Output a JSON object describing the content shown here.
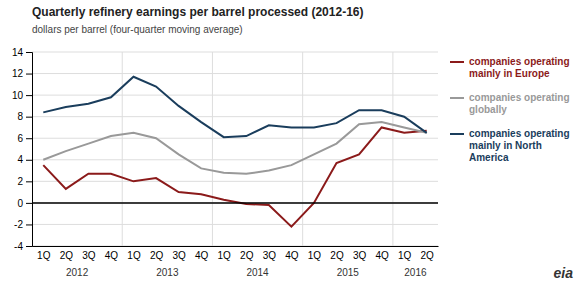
{
  "chart_data": {
    "type": "line",
    "title": "Quarterly refinery earnings per barrel processed (2012-16)",
    "subtitle": "dollars per barrel (four-quarter moving average)",
    "categories": [
      "1Q",
      "2Q",
      "3Q",
      "4Q",
      "1Q",
      "2Q",
      "3Q",
      "4Q",
      "1Q",
      "2Q",
      "3Q",
      "4Q",
      "1Q",
      "2Q",
      "3Q",
      "4Q",
      "1Q",
      "2Q"
    ],
    "annotations": [
      "2012",
      "2013",
      "2014",
      "2015",
      "2016"
    ],
    "source": "eia",
    "series": [
      {
        "name": "companies operating\nmainly in Europe",
        "color": "#8B1A1A",
        "values": [
          3.5,
          1.3,
          2.7,
          2.7,
          2.0,
          2.3,
          1.0,
          0.8,
          0.3,
          -0.1,
          -0.2,
          -2.2,
          0.0,
          3.7,
          4.5,
          7.0,
          6.5,
          6.7
        ]
      },
      {
        "name": "companies operating\nglobally",
        "color": "#999999",
        "values": [
          4.0,
          4.8,
          5.5,
          6.2,
          6.5,
          6.0,
          4.5,
          3.2,
          2.8,
          2.7,
          3.0,
          3.5,
          4.5,
          5.5,
          7.3,
          7.5,
          7.0,
          6.5
        ]
      },
      {
        "name": "companies operating\nmainly in North\nAmerica",
        "color": "#1a3d5c",
        "values": [
          8.4,
          8.9,
          9.2,
          9.8,
          11.7,
          10.8,
          9.0,
          7.5,
          6.1,
          6.2,
          7.2,
          7.0,
          7.0,
          7.4,
          8.6,
          8.6,
          8.0,
          6.5
        ]
      }
    ],
    "ylim": [
      -4,
      14
    ],
    "yticks": [
      -4,
      -2,
      0,
      2,
      4,
      6,
      8,
      10,
      12,
      14
    ],
    "grid": true
  }
}
